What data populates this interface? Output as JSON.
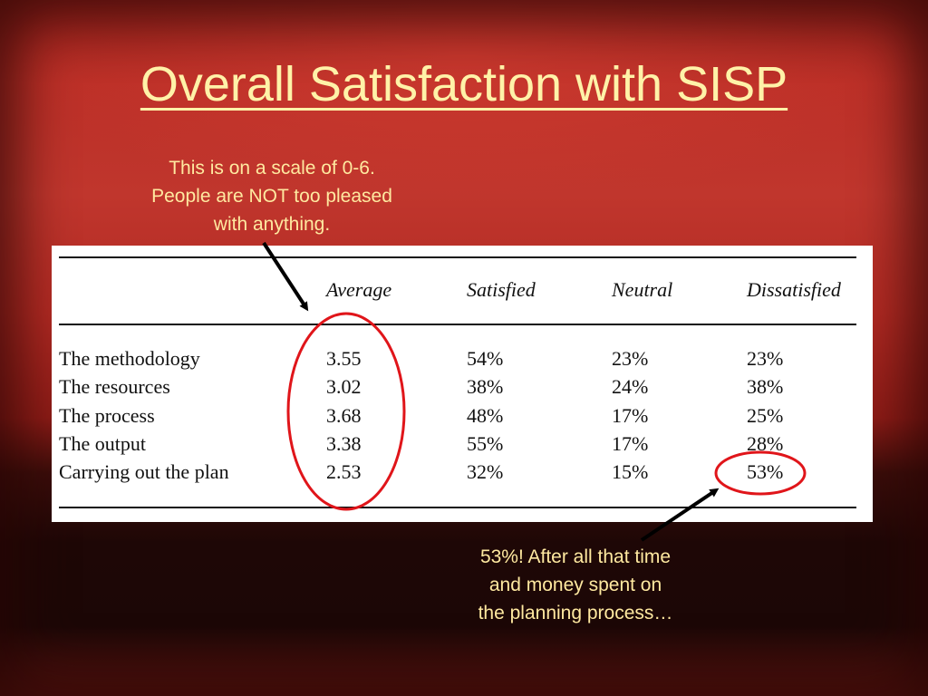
{
  "slide": {
    "title": "Overall Satisfaction with SISP",
    "note_top": [
      "This is on a scale of 0-6.",
      "People are NOT too pleased",
      "with anything."
    ],
    "note_bottom": [
      "53%!  After all that time",
      "and money spent on",
      "the planning process…"
    ]
  },
  "table": {
    "headers": [
      "Average",
      "Satisfied",
      "Neutral",
      "Dissatisfied"
    ],
    "rows": [
      {
        "label": "The methodology",
        "average": "3.55",
        "satisfied": "54%",
        "neutral": "23%",
        "dissatisfied": "23%"
      },
      {
        "label": "The resources",
        "average": "3.02",
        "satisfied": "38%",
        "neutral": "24%",
        "dissatisfied": "38%"
      },
      {
        "label": "The process",
        "average": "3.68",
        "satisfied": "48%",
        "neutral": "17%",
        "dissatisfied": "25%"
      },
      {
        "label": "The output",
        "average": "3.38",
        "satisfied": "55%",
        "neutral": "17%",
        "dissatisfied": "28%"
      },
      {
        "label": "Carrying out the plan",
        "average": "2.53",
        "satisfied": "32%",
        "neutral": "15%",
        "dissatisfied": "53%"
      }
    ]
  },
  "colors": {
    "title_text": "#fff2a8",
    "note_text": "#ffe9a0",
    "highlight_circle": "#e0151a",
    "arrow": "#000000"
  }
}
